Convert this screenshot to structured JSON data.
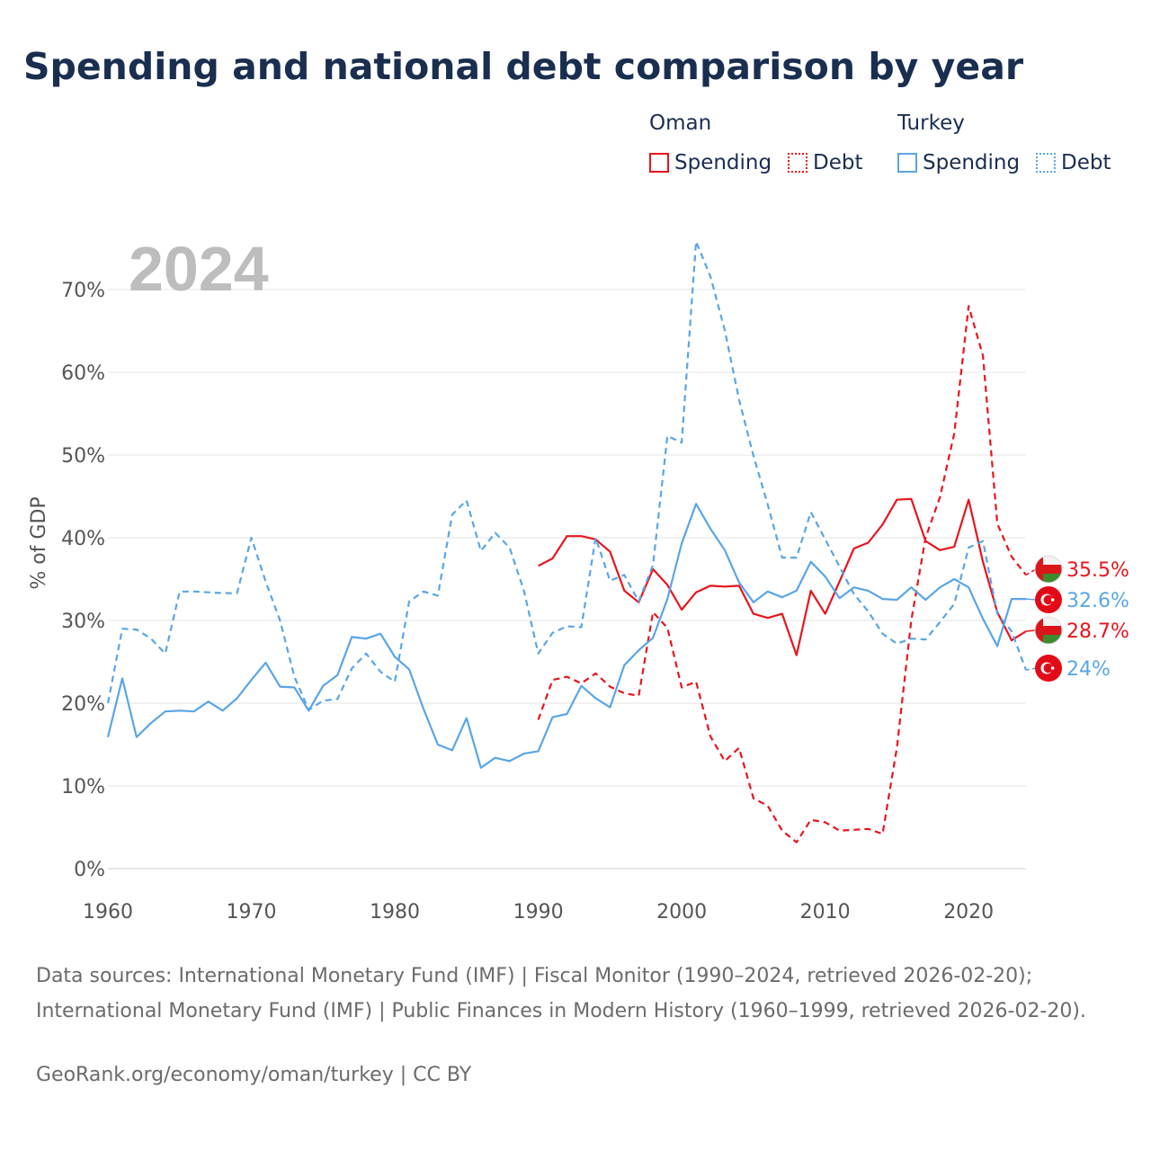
{
  "title": "Spending and national debt comparison by year",
  "legend": {
    "groups": [
      {
        "name": "Oman",
        "items": [
          {
            "label": "Spending",
            "style": "solid",
            "color": "#e8141d"
          },
          {
            "label": "Debt",
            "style": "dotted",
            "color": "#e8141d"
          }
        ]
      },
      {
        "name": "Turkey",
        "items": [
          {
            "label": "Spending",
            "style": "solid",
            "color": "#5aa5e6"
          },
          {
            "label": "Debt",
            "style": "dotted",
            "color": "#5aa5e6"
          }
        ]
      }
    ]
  },
  "footer": {
    "sources": "Data sources: International Monetary Fund (IMF) | Fiscal Monitor (1990–2024, retrieved 2026-02-20); International Monetary Fund (IMF) | Public Finances in Modern History (1960–1999, retrieved 2026-02-20).",
    "credit": "GeoRank.org/economy/oman/turkey | CC BY"
  },
  "chart_data": {
    "type": "line",
    "year_label": "2024",
    "ylabel": "% of GDP",
    "xlabel": "",
    "xlim": [
      1960,
      2024
    ],
    "ylim": [
      0,
      75
    ],
    "x_ticks": [
      "1960",
      "1970",
      "1980",
      "1990",
      "2000",
      "2010",
      "2020"
    ],
    "y_ticks": [
      "0%",
      "10%",
      "20%",
      "30%",
      "40%",
      "50%",
      "60%",
      "70%"
    ],
    "colors": {
      "oman": "#e8141d",
      "turkey": "#5aa5e6",
      "grid": "#e6e6e6",
      "axis_text": "#555555",
      "year_label": "#bdbdbd"
    },
    "series": [
      {
        "name": "Oman Spending",
        "country": "oman",
        "style": "solid",
        "start_year": 1990,
        "values": [
          36.6,
          37.5,
          40.2,
          40.2,
          39.8,
          38.3,
          33.6,
          32.2,
          36.2,
          34.3,
          31.3,
          33.4,
          34.2,
          34.1,
          34.2,
          30.8,
          30.3,
          30.8,
          25.8,
          33.6,
          30.8,
          34.7,
          38.7,
          39.4,
          41.6,
          44.6,
          44.7,
          39.6,
          38.5,
          38.9,
          44.6,
          37.1,
          31.0,
          27.6,
          28.7
        ]
      },
      {
        "name": "Oman Debt",
        "country": "oman",
        "style": "dashed",
        "start_year": 1990,
        "values": [
          18.0,
          22.8,
          23.2,
          22.4,
          23.6,
          22.0,
          21.2,
          20.9,
          31.0,
          29.1,
          21.9,
          22.6,
          16.0,
          13.0,
          14.6,
          8.5,
          7.6,
          4.6,
          3.2,
          5.9,
          5.6,
          4.6,
          4.7,
          4.8,
          4.2,
          14.6,
          30.0,
          40.0,
          44.9,
          52.6,
          68.0,
          62.0,
          41.7,
          37.7,
          35.5
        ]
      },
      {
        "name": "Turkey Spending",
        "country": "turkey",
        "style": "solid",
        "start_year": 1960,
        "values": [
          15.9,
          23.0,
          15.9,
          17.6,
          19.0,
          19.1,
          19.0,
          20.2,
          19.1,
          20.6,
          22.8,
          24.9,
          22.0,
          21.9,
          19.1,
          22.1,
          23.4,
          28.0,
          27.8,
          28.4,
          25.6,
          24.1,
          19.3,
          15.0,
          14.3,
          18.2,
          12.2,
          13.4,
          13.0,
          13.9,
          14.2,
          18.3,
          18.7,
          22.1,
          20.6,
          19.5,
          24.6,
          26.4,
          27.9,
          32.6,
          39.3,
          44.1,
          41.1,
          38.5,
          34.6,
          32.2,
          33.5,
          32.8,
          33.6,
          37.1,
          35.3,
          32.7,
          34.0,
          33.6,
          32.6,
          32.5,
          34.0,
          32.5,
          34.0,
          35.0,
          34.0,
          30.2,
          26.9,
          32.6,
          32.6
        ]
      },
      {
        "name": "Turkey Debt",
        "country": "turkey",
        "style": "dashed",
        "start_year": 1960,
        "values": [
          20.0,
          29.0,
          28.9,
          27.8,
          26.0,
          33.5,
          33.5,
          33.4,
          33.3,
          33.3,
          40.0,
          34.7,
          30.0,
          23.2,
          19.2,
          20.3,
          20.5,
          24.2,
          26.0,
          23.8,
          22.6,
          32.3,
          33.5,
          33.0,
          42.8,
          44.5,
          38.4,
          40.6,
          38.8,
          33.6,
          26.0,
          28.5,
          29.3,
          29.2,
          40.0,
          34.8,
          35.5,
          32.3,
          36.7,
          52.3,
          51.5,
          75.8,
          71.6,
          65.1,
          56.7,
          49.9,
          44.0,
          37.6,
          37.6,
          43.1,
          39.8,
          36.5,
          33.2,
          31.1,
          28.4,
          27.2,
          27.8,
          27.7,
          29.8,
          32.0,
          38.8,
          39.6,
          30.8,
          28.7,
          24.0
        ]
      }
    ],
    "end_labels": [
      {
        "series": "Oman Debt",
        "text": "35.5%",
        "flag": "oman",
        "value": 35.5
      },
      {
        "series": "Turkey Spending",
        "text": "32.6%",
        "flag": "turkey",
        "value": 32.6
      },
      {
        "series": "Oman Spending",
        "text": "28.7%",
        "flag": "oman",
        "value": 28.7
      },
      {
        "series": "Turkey Debt",
        "text": "24%",
        "flag": "turkey",
        "value": 24.0
      }
    ]
  }
}
